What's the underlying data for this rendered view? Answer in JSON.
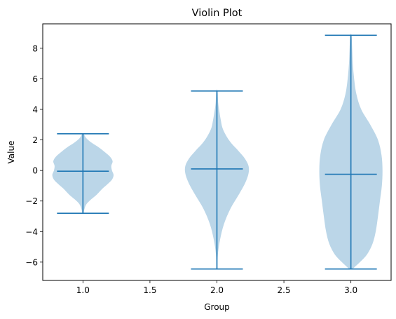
{
  "chart_data": {
    "type": "violin",
    "title": "Violin Plot",
    "xlabel": "Group",
    "ylabel": "Value",
    "xlim": [
      0.7,
      3.3
    ],
    "ylim": [
      -7.2,
      9.6
    ],
    "x_ticks": [
      1.0,
      1.5,
      2.0,
      2.5,
      3.0
    ],
    "x_tick_labels": [
      "1.0",
      "1.5",
      "2.0",
      "2.5",
      "3.0"
    ],
    "y_ticks": [
      -6,
      -4,
      -2,
      0,
      2,
      4,
      6,
      8
    ],
    "y_tick_labels": [
      "−6",
      "−4",
      "−2",
      "0",
      "2",
      "4",
      "6",
      "8"
    ],
    "grid": false,
    "colors": {
      "body": "#1f77b4",
      "body_opacity": 0.3,
      "lines": "#1f77b4"
    },
    "groups": [
      {
        "position": 1.0,
        "min": -2.8,
        "max": 2.4,
        "median": -0.05,
        "density_profile": [
          [
            -2.8,
            0.02
          ],
          [
            -2.5,
            0.05
          ],
          [
            -2.2,
            0.11
          ],
          [
            -1.9,
            0.25
          ],
          [
            -1.6,
            0.42
          ],
          [
            -1.2,
            0.6
          ],
          [
            -0.9,
            0.76
          ],
          [
            -0.6,
            0.9
          ],
          [
            -0.3,
            0.95
          ],
          [
            0.0,
            0.9
          ],
          [
            0.3,
            0.88
          ],
          [
            0.6,
            0.92
          ],
          [
            0.9,
            0.84
          ],
          [
            1.2,
            0.68
          ],
          [
            1.5,
            0.5
          ],
          [
            1.8,
            0.28
          ],
          [
            2.1,
            0.11
          ],
          [
            2.4,
            0.02
          ]
        ]
      },
      {
        "position": 2.0,
        "min": -6.45,
        "max": 5.2,
        "median": 0.1,
        "density_profile": [
          [
            -6.45,
            0.02
          ],
          [
            -5.5,
            0.03
          ],
          [
            -4.5,
            0.1
          ],
          [
            -3.5,
            0.22
          ],
          [
            -2.5,
            0.42
          ],
          [
            -1.5,
            0.7
          ],
          [
            -0.8,
            0.88
          ],
          [
            -0.2,
            0.98
          ],
          [
            0.3,
            0.98
          ],
          [
            0.8,
            0.86
          ],
          [
            1.3,
            0.66
          ],
          [
            1.8,
            0.44
          ],
          [
            2.3,
            0.28
          ],
          [
            2.8,
            0.17
          ],
          [
            3.3,
            0.12
          ],
          [
            3.8,
            0.08
          ],
          [
            4.4,
            0.04
          ],
          [
            5.2,
            0.02
          ]
        ]
      },
      {
        "position": 3.0,
        "min": -6.45,
        "max": 8.85,
        "median": -0.25,
        "density_profile": [
          [
            -6.45,
            0.05
          ],
          [
            -6.0,
            0.28
          ],
          [
            -5.5,
            0.5
          ],
          [
            -4.8,
            0.67
          ],
          [
            -4.0,
            0.77
          ],
          [
            -3.0,
            0.84
          ],
          [
            -2.0,
            0.9
          ],
          [
            -1.0,
            0.96
          ],
          [
            0.0,
            0.98
          ],
          [
            1.0,
            0.95
          ],
          [
            2.0,
            0.84
          ],
          [
            3.0,
            0.6
          ],
          [
            4.0,
            0.32
          ],
          [
            5.0,
            0.17
          ],
          [
            6.0,
            0.1
          ],
          [
            7.0,
            0.06
          ],
          [
            8.0,
            0.04
          ],
          [
            8.85,
            0.02
          ]
        ]
      }
    ]
  }
}
